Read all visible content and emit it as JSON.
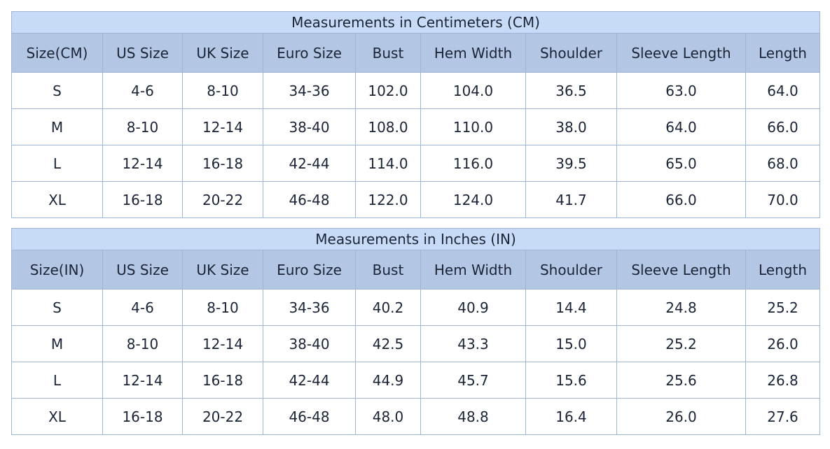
{
  "tables": [
    {
      "title": "Measurements in Centimeters (CM)",
      "headers": [
        "Size(CM)",
        "US Size",
        "UK Size",
        "Euro Size",
        "Bust",
        "Hem Width",
        "Shoulder",
        "Sleeve Length",
        "Length"
      ],
      "rows": [
        [
          "S",
          "4-6",
          "8-10",
          "34-36",
          "102.0",
          "104.0",
          "36.5",
          "63.0",
          "64.0"
        ],
        [
          "M",
          "8-10",
          "12-14",
          "38-40",
          "108.0",
          "110.0",
          "38.0",
          "64.0",
          "66.0"
        ],
        [
          "L",
          "12-14",
          "16-18",
          "42-44",
          "114.0",
          "116.0",
          "39.5",
          "65.0",
          "68.0"
        ],
        [
          "XL",
          "16-18",
          "20-22",
          "46-48",
          "122.0",
          "124.0",
          "41.7",
          "66.0",
          "70.0"
        ]
      ]
    },
    {
      "title": "Measurements in Inches (IN)",
      "headers": [
        "Size(IN)",
        "US Size",
        "UK Size",
        "Euro Size",
        "Bust",
        "Hem Width",
        "Shoulder",
        "Sleeve Length",
        "Length"
      ],
      "rows": [
        [
          "S",
          "4-6",
          "8-10",
          "34-36",
          "40.2",
          "40.9",
          "14.4",
          "24.8",
          "25.2"
        ],
        [
          "M",
          "8-10",
          "12-14",
          "38-40",
          "42.5",
          "43.3",
          "15.0",
          "25.2",
          "26.0"
        ],
        [
          "L",
          "12-14",
          "16-18",
          "42-44",
          "44.9",
          "45.7",
          "15.6",
          "25.6",
          "26.8"
        ],
        [
          "XL",
          "16-18",
          "20-22",
          "46-48",
          "48.0",
          "48.8",
          "16.4",
          "26.0",
          "27.6"
        ]
      ]
    }
  ]
}
